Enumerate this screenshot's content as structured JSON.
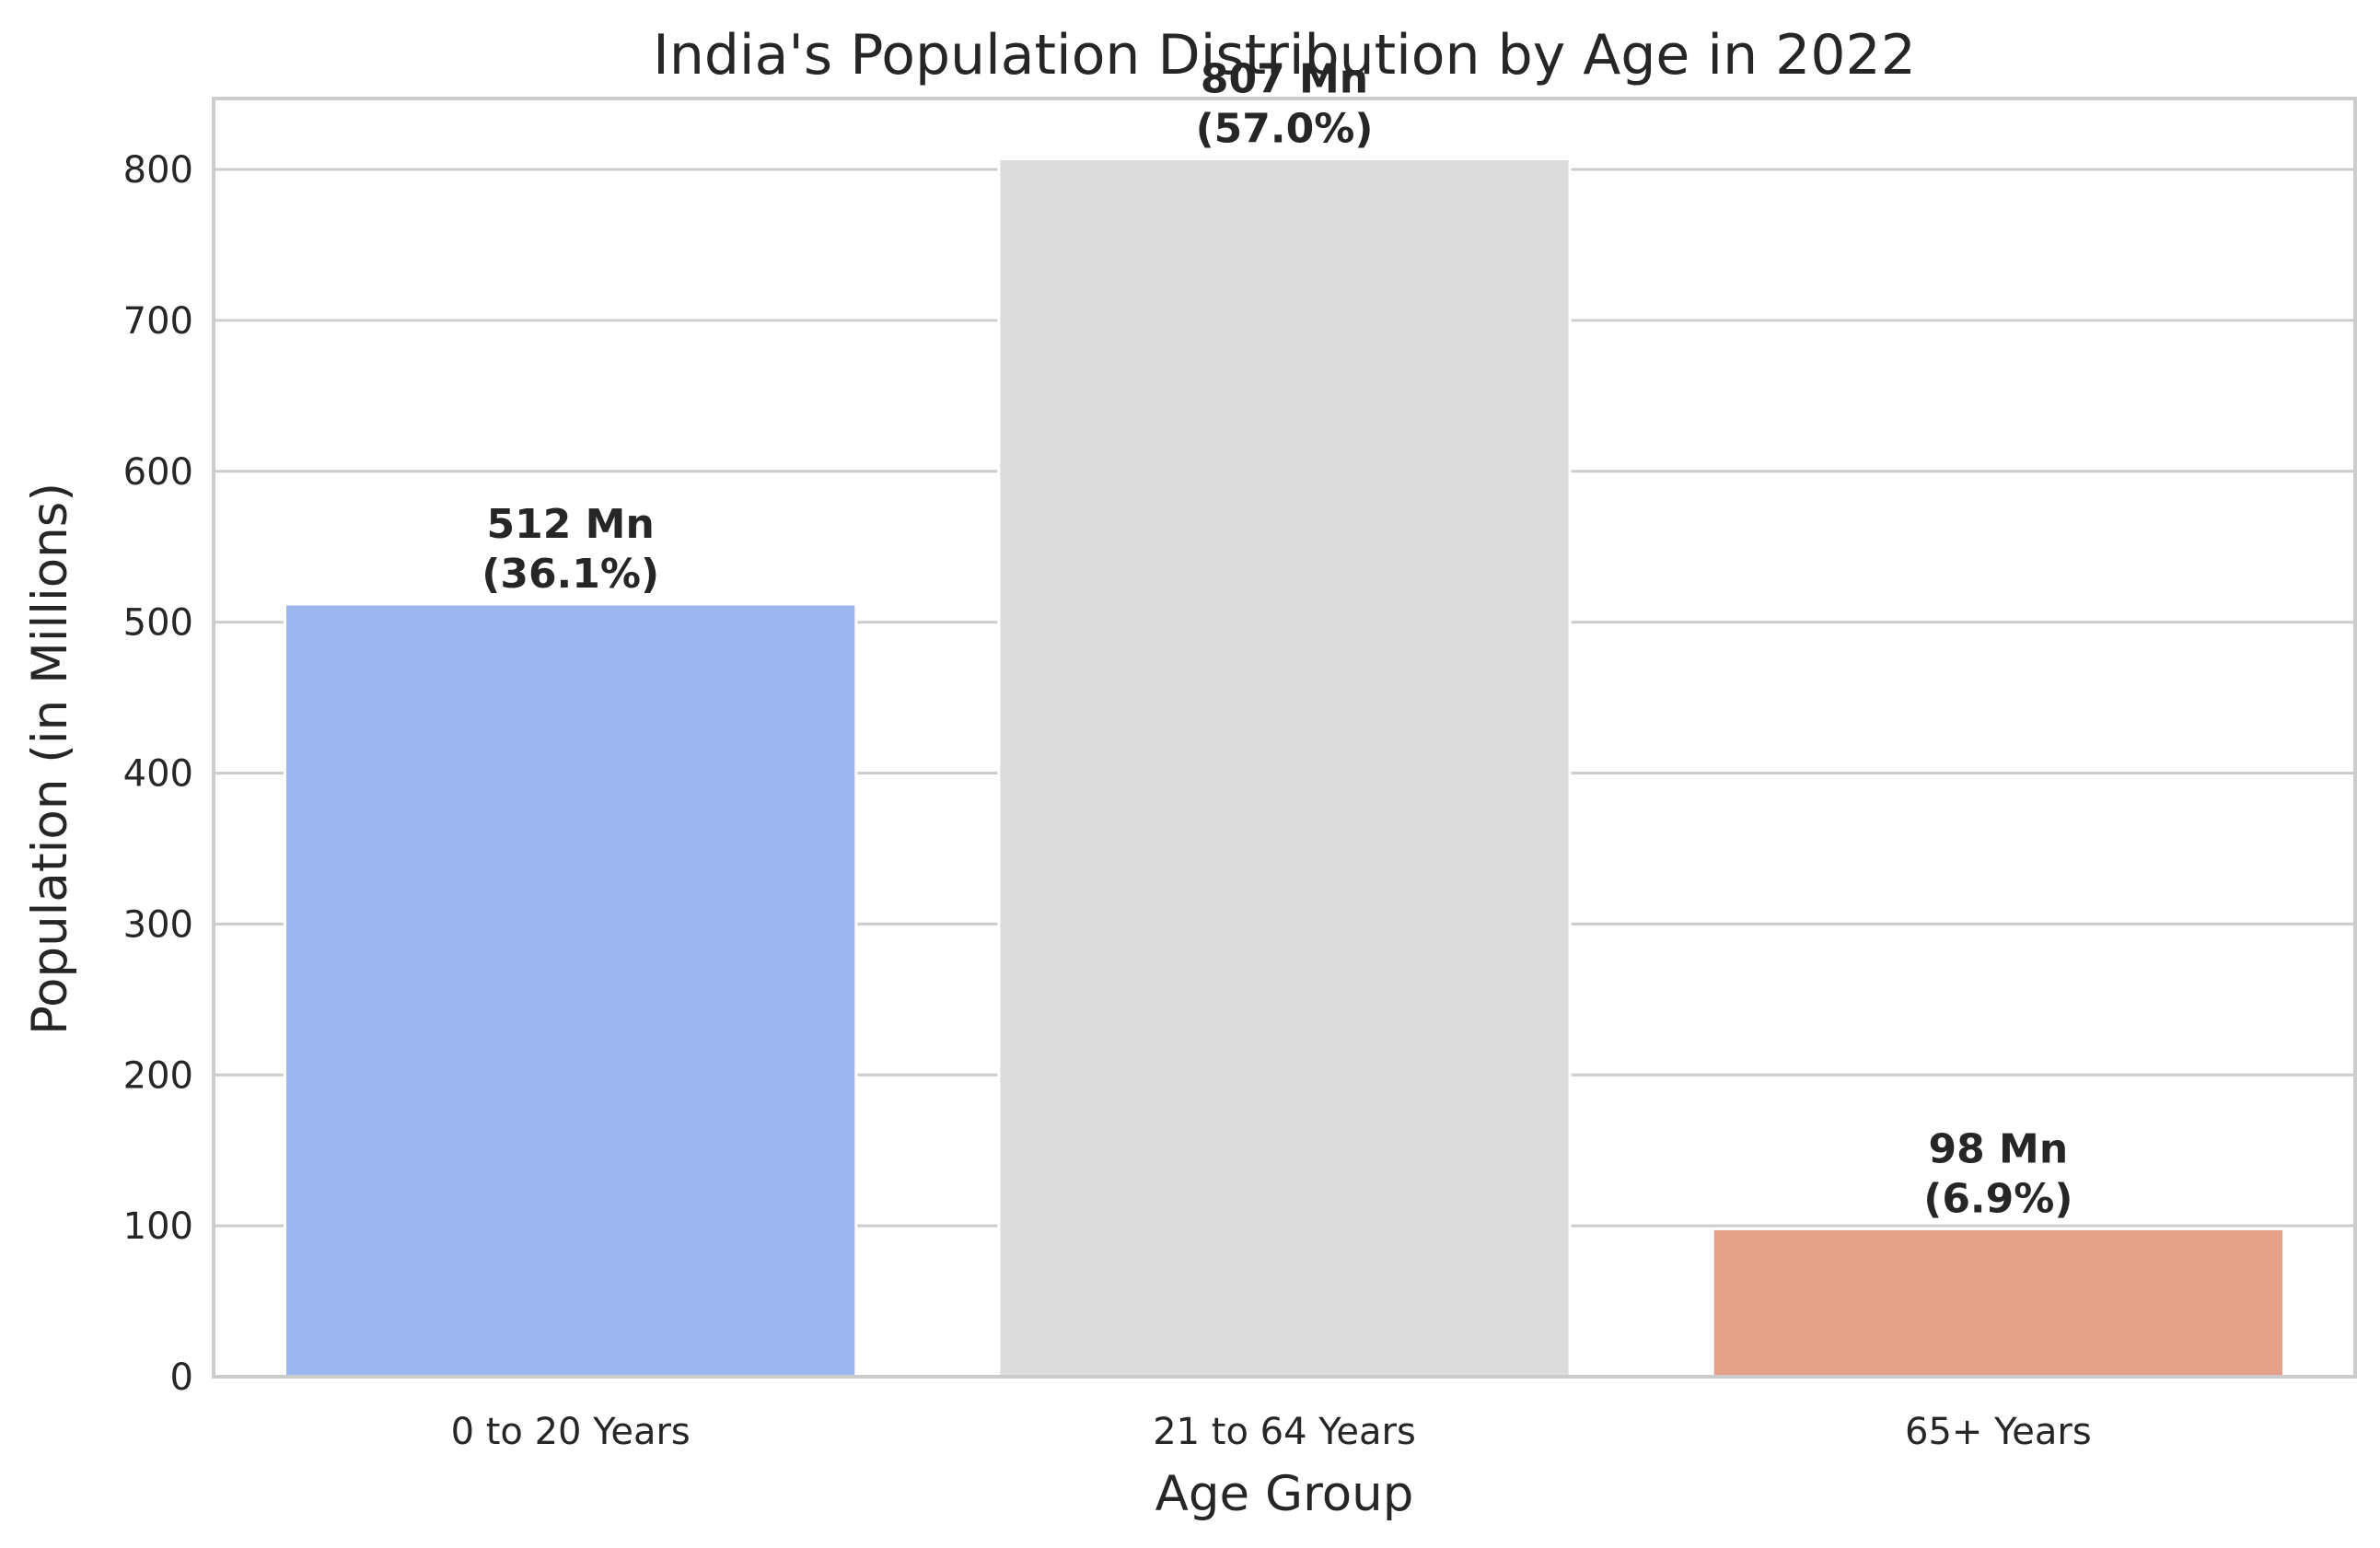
{
  "chart_data": {
    "type": "bar",
    "title": "India's Population Distribution by Age in 2022",
    "xlabel": "Age Group",
    "ylabel": "Population (in Millions)",
    "categories": [
      "0 to 20 Years",
      "21 to 64 Years",
      "65+ Years"
    ],
    "values": [
      512,
      807,
      98
    ],
    "data_labels": [
      [
        "512 Mn",
        "(36.1%)"
      ],
      [
        "807 Mn",
        "(57.0%)"
      ],
      [
        "98 Mn",
        "(6.9%)"
      ]
    ],
    "colors": [
      "#9bb5ee",
      "#dcdcdc",
      "#e5a089"
    ],
    "ylim": [
      0,
      847
    ],
    "yticks": [
      0,
      100,
      200,
      300,
      400,
      500,
      600,
      700,
      800
    ],
    "grid": true,
    "legend": "none"
  }
}
